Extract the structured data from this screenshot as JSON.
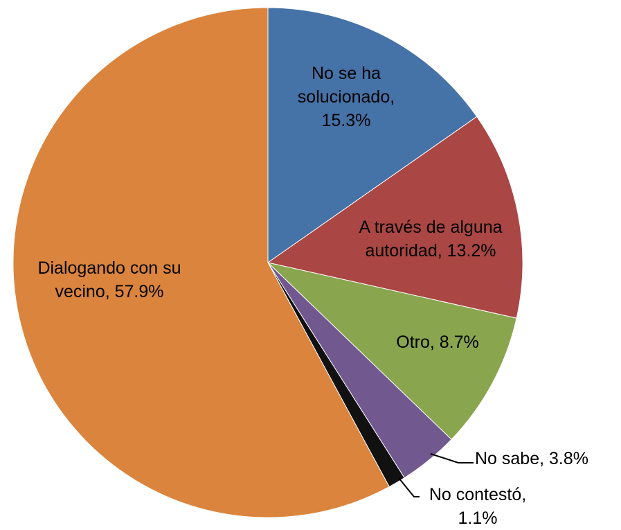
{
  "chart_data": {
    "type": "pie",
    "labels": [
      "No se ha solucionado, 15.3%",
      "A través de alguna autoridad, 13.2%",
      "Otro, 8.7%",
      "No sabe, 3.8%",
      "No contestó, 1.1%",
      "Dialogando con su vecino, 57.9%"
    ],
    "values": [
      15.3,
      13.2,
      8.7,
      3.8,
      1.1,
      57.9
    ],
    "colors": [
      "#4572a7",
      "#aa4643",
      "#89a54e",
      "#71588f",
      "#111111",
      "#db843d"
    ]
  }
}
